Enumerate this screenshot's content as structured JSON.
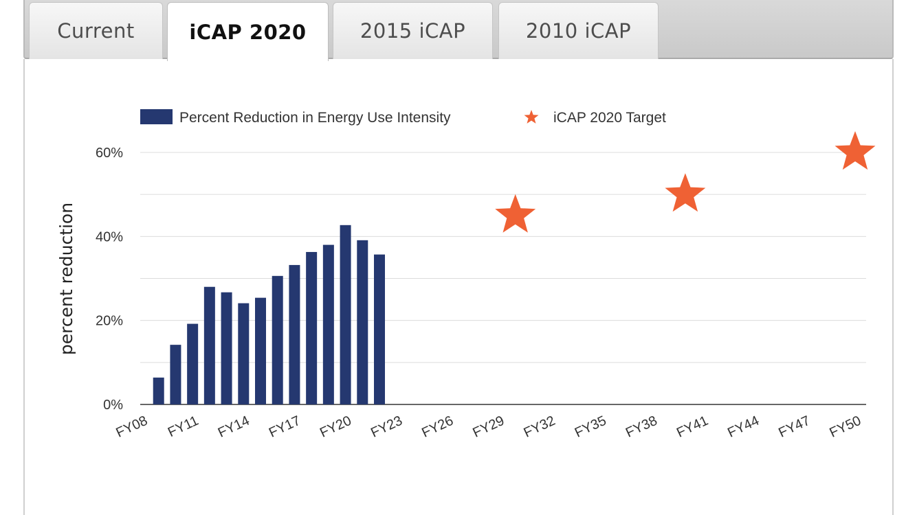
{
  "tabs": [
    {
      "label": "Current",
      "active": false
    },
    {
      "label": "iCAP 2020",
      "active": true
    },
    {
      "label": "2015 iCAP",
      "active": false
    },
    {
      "label": "2010 iCAP",
      "active": false
    }
  ],
  "chart_data": {
    "type": "bar",
    "ylabel": "percent reduction",
    "ylim": [
      0,
      60
    ],
    "y_ticks": [
      "0%",
      "20%",
      "40%",
      "60%"
    ],
    "grid": true,
    "x_ticks": [
      "FY08",
      "FY11",
      "FY14",
      "FY17",
      "FY20",
      "FY23",
      "FY26",
      "FY29",
      "FY32",
      "FY35",
      "FY38",
      "FY41",
      "FY44",
      "FY47",
      "FY50"
    ],
    "legend": {
      "placement": "top"
    },
    "series": [
      {
        "name": "Percent Reduction in Energy Use Intensity",
        "type": "bar",
        "color": "#253870",
        "x": [
          "FY09",
          "FY10",
          "FY11",
          "FY12",
          "FY13",
          "FY14",
          "FY15",
          "FY16",
          "FY17",
          "FY18",
          "FY19",
          "FY20",
          "FY21",
          "FY22"
        ],
        "values": [
          6.4,
          14.2,
          19.2,
          28.0,
          26.7,
          24.1,
          25.4,
          30.6,
          33.2,
          36.3,
          38.0,
          42.7,
          39.1,
          35.7
        ]
      },
      {
        "name": "iCAP 2020 Target",
        "type": "scatter",
        "marker": "star",
        "color": "#ef6134",
        "x": [
          "FY30",
          "FY40",
          "FY50"
        ],
        "values": [
          45,
          50,
          60
        ]
      }
    ]
  }
}
